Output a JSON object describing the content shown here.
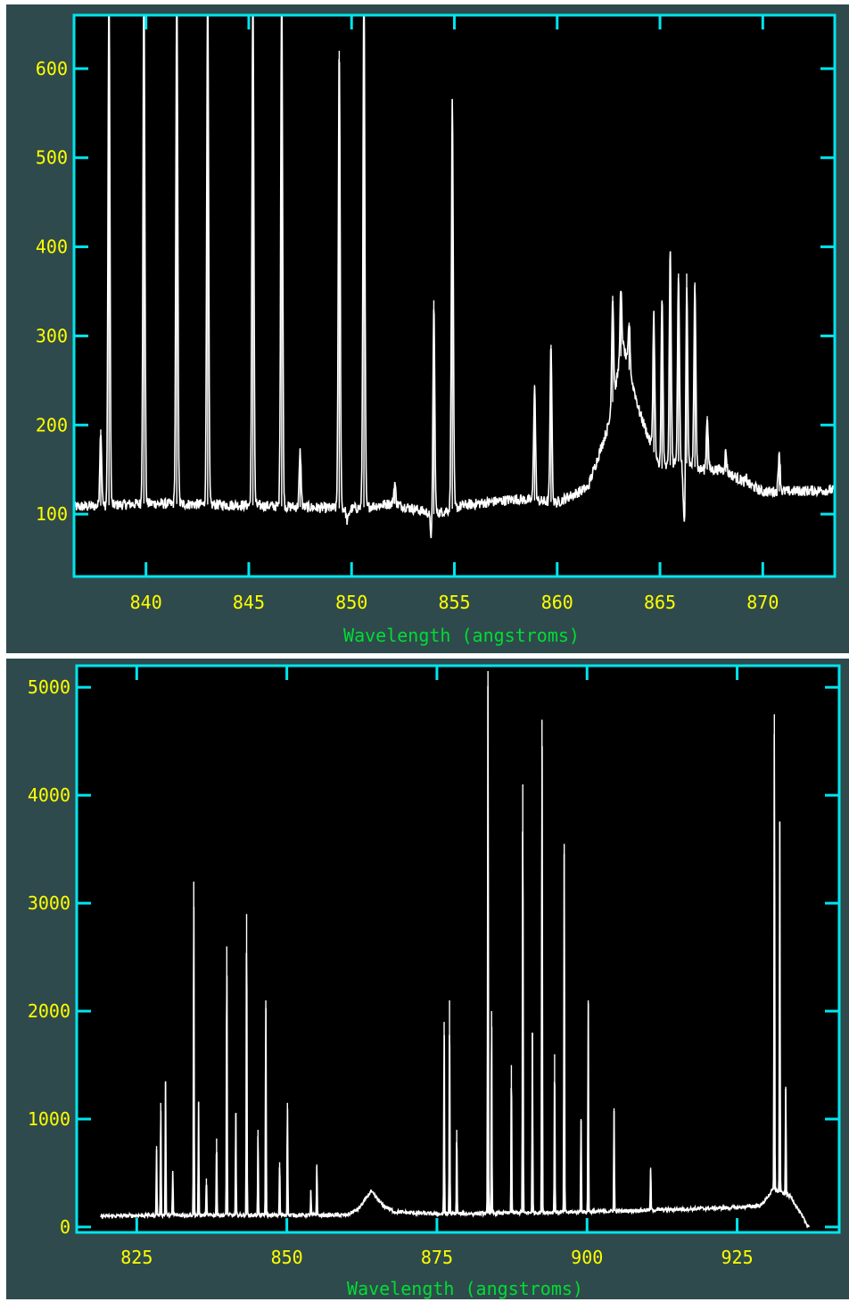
{
  "colors": {
    "background": "#2f4a4c",
    "plot_area": "#000000",
    "frame": "#00e5ee",
    "tick_labels": "#ffff00",
    "axis_title": "#00dd33",
    "spectrum": "#ffffff"
  },
  "chart_data": [
    {
      "type": "line",
      "title": "",
      "xlabel": "Wavelength (angstroms)",
      "ylabel": "",
      "xlim": [
        836.5,
        873.5
      ],
      "ylim": [
        30,
        660
      ],
      "xticks": [
        840,
        845,
        850,
        855,
        860,
        865,
        870
      ],
      "xtick_labels": [
        "840",
        "845",
        "850",
        "855",
        "860",
        "865",
        "870"
      ],
      "yticks": [
        100,
        200,
        300,
        400,
        500,
        600
      ],
      "ytick_labels": [
        "100",
        "200",
        "300",
        "400",
        "500",
        "600"
      ],
      "grid": false,
      "baseline": [
        [
          836.5,
          108
        ],
        [
          840,
          112
        ],
        [
          845,
          110
        ],
        [
          850,
          106
        ],
        [
          852,
          112
        ],
        [
          854,
          100
        ],
        [
          855.5,
          110
        ],
        [
          858,
          117
        ],
        [
          860,
          113
        ],
        [
          861.5,
          130
        ],
        [
          862.5,
          200
        ],
        [
          863.2,
          290
        ],
        [
          864,
          215
        ],
        [
          865,
          150
        ],
        [
          866,
          160
        ],
        [
          867,
          150
        ],
        [
          868,
          150
        ],
        [
          870,
          125
        ],
        [
          873.5,
          127
        ]
      ],
      "peaks": [
        {
          "x": 837.8,
          "y": 195
        },
        {
          "x": 838.2,
          "y": 700
        },
        {
          "x": 839.9,
          "y": 700
        },
        {
          "x": 841.5,
          "y": 700
        },
        {
          "x": 843.0,
          "y": 700
        },
        {
          "x": 845.2,
          "y": 700
        },
        {
          "x": 846.6,
          "y": 700
        },
        {
          "x": 847.5,
          "y": 170
        },
        {
          "x": 849.4,
          "y": 620
        },
        {
          "x": 850.6,
          "y": 700
        },
        {
          "x": 852.1,
          "y": 135
        },
        {
          "x": 854.0,
          "y": 340
        },
        {
          "x": 854.9,
          "y": 565
        },
        {
          "x": 858.9,
          "y": 245
        },
        {
          "x": 859.7,
          "y": 290
        },
        {
          "x": 862.7,
          "y": 345
        },
        {
          "x": 863.1,
          "y": 350
        },
        {
          "x": 863.5,
          "y": 315
        },
        {
          "x": 864.7,
          "y": 325
        },
        {
          "x": 865.1,
          "y": 340
        },
        {
          "x": 865.5,
          "y": 395
        },
        {
          "x": 865.9,
          "y": 370
        },
        {
          "x": 866.3,
          "y": 370
        },
        {
          "x": 866.7,
          "y": 360
        },
        {
          "x": 867.3,
          "y": 210
        },
        {
          "x": 868.2,
          "y": 170
        },
        {
          "x": 869.2,
          "y": 140
        },
        {
          "x": 870.8,
          "y": 170
        }
      ],
      "dips": [
        {
          "x": 849.8,
          "y": 92
        },
        {
          "x": 853.9,
          "y": 70
        },
        {
          "x": 866.2,
          "y": 80
        }
      ]
    },
    {
      "type": "line",
      "title": "",
      "xlabel": "Wavelength (angstroms)",
      "ylabel": "",
      "xlim": [
        815,
        942
      ],
      "ylim": [
        -50,
        5200
      ],
      "xticks": [
        825,
        850,
        875,
        900,
        925
      ],
      "xtick_labels": [
        "825",
        "850",
        "875",
        "900",
        "925"
      ],
      "yticks": [
        0,
        1000,
        2000,
        3000,
        4000,
        5000
      ],
      "ytick_labels": [
        "0",
        "1000",
        "2000",
        "3000",
        "4000",
        "5000"
      ],
      "grid": false,
      "baseline": [
        [
          819,
          100
        ],
        [
          828,
          110
        ],
        [
          860,
          110
        ],
        [
          862,
          170
        ],
        [
          864,
          330
        ],
        [
          866,
          200
        ],
        [
          868,
          140
        ],
        [
          875,
          120
        ],
        [
          900,
          140
        ],
        [
          925,
          180
        ],
        [
          929,
          200
        ],
        [
          931,
          350
        ],
        [
          934,
          280
        ],
        [
          936,
          80
        ],
        [
          937,
          0
        ]
      ],
      "peaks": [
        {
          "x": 828.3,
          "y": 750
        },
        {
          "x": 829.0,
          "y": 1150
        },
        {
          "x": 829.8,
          "y": 1350
        },
        {
          "x": 831.0,
          "y": 520
        },
        {
          "x": 834.5,
          "y": 3200
        },
        {
          "x": 835.3,
          "y": 1150
        },
        {
          "x": 836.6,
          "y": 450
        },
        {
          "x": 838.3,
          "y": 820
        },
        {
          "x": 840.0,
          "y": 2600
        },
        {
          "x": 841.5,
          "y": 1050
        },
        {
          "x": 843.3,
          "y": 2900
        },
        {
          "x": 845.2,
          "y": 900
        },
        {
          "x": 846.5,
          "y": 2100
        },
        {
          "x": 848.8,
          "y": 600
        },
        {
          "x": 850.1,
          "y": 1150
        },
        {
          "x": 854.0,
          "y": 330
        },
        {
          "x": 855.0,
          "y": 580
        },
        {
          "x": 876.2,
          "y": 1900
        },
        {
          "x": 877.1,
          "y": 2100
        },
        {
          "x": 878.3,
          "y": 900
        },
        {
          "x": 883.5,
          "y": 5150
        },
        {
          "x": 884.1,
          "y": 2000
        },
        {
          "x": 887.4,
          "y": 1500
        },
        {
          "x": 889.3,
          "y": 4100
        },
        {
          "x": 890.9,
          "y": 1800
        },
        {
          "x": 892.5,
          "y": 4700
        },
        {
          "x": 894.6,
          "y": 1600
        },
        {
          "x": 896.2,
          "y": 3550
        },
        {
          "x": 899.0,
          "y": 1000
        },
        {
          "x": 900.2,
          "y": 2100
        },
        {
          "x": 904.5,
          "y": 1100
        },
        {
          "x": 910.6,
          "y": 550
        },
        {
          "x": 931.2,
          "y": 4750
        },
        {
          "x": 932.1,
          "y": 3750
        },
        {
          "x": 933.1,
          "y": 1300
        }
      ],
      "dips": []
    }
  ]
}
